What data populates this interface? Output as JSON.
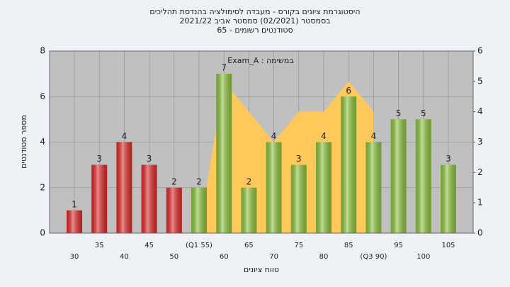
{
  "chart_data": {
    "type": "bar",
    "title": [
      "היסטוגרמת ציונים בקורס - מעבדה לסימולציה בהנדסת תהליכים",
      "בסמסטר  (02/2021)  סמסטר אביב 2021/22",
      "סטודנטים רשומים - 65"
    ],
    "annotation": "Exam_A : במשימה",
    "xlabel": "טווח ציונים",
    "ylabel": "מספר סטודנטים",
    "categories": [
      "30",
      "35",
      "40",
      "45",
      "50",
      "(Q1 55)",
      "60",
      "65",
      "70",
      "75",
      "80",
      "85",
      "(Q3 90)",
      "95",
      "100",
      "105"
    ],
    "values": [
      1,
      3,
      4,
      3,
      2,
      2,
      7,
      2,
      4,
      3,
      4,
      6,
      4,
      5,
      5,
      3
    ],
    "colors": [
      "#e02828",
      "#e02828",
      "#e02828",
      "#e02828",
      "#e02828",
      "#8cc43c",
      "#8cc43c",
      "#8cc43c",
      "#8cc43c",
      "#8cc43c",
      "#8cc43c",
      "#8cc43c",
      "#8cc43c",
      "#8cc43c",
      "#8cc43c",
      "#8cc43c"
    ],
    "area": {
      "color": "#ffc85a",
      "axis": "y2",
      "values": [
        null,
        null,
        null,
        null,
        null,
        0,
        5,
        4,
        3,
        4,
        4,
        5,
        4,
        null,
        null,
        null
      ]
    },
    "ylim": [
      0,
      8
    ],
    "yticks": [
      0,
      2,
      4,
      6,
      8
    ],
    "y2lim": [
      0,
      6
    ],
    "y2ticks": [
      0,
      1,
      2,
      3,
      4,
      5,
      6
    ],
    "grid": true
  }
}
